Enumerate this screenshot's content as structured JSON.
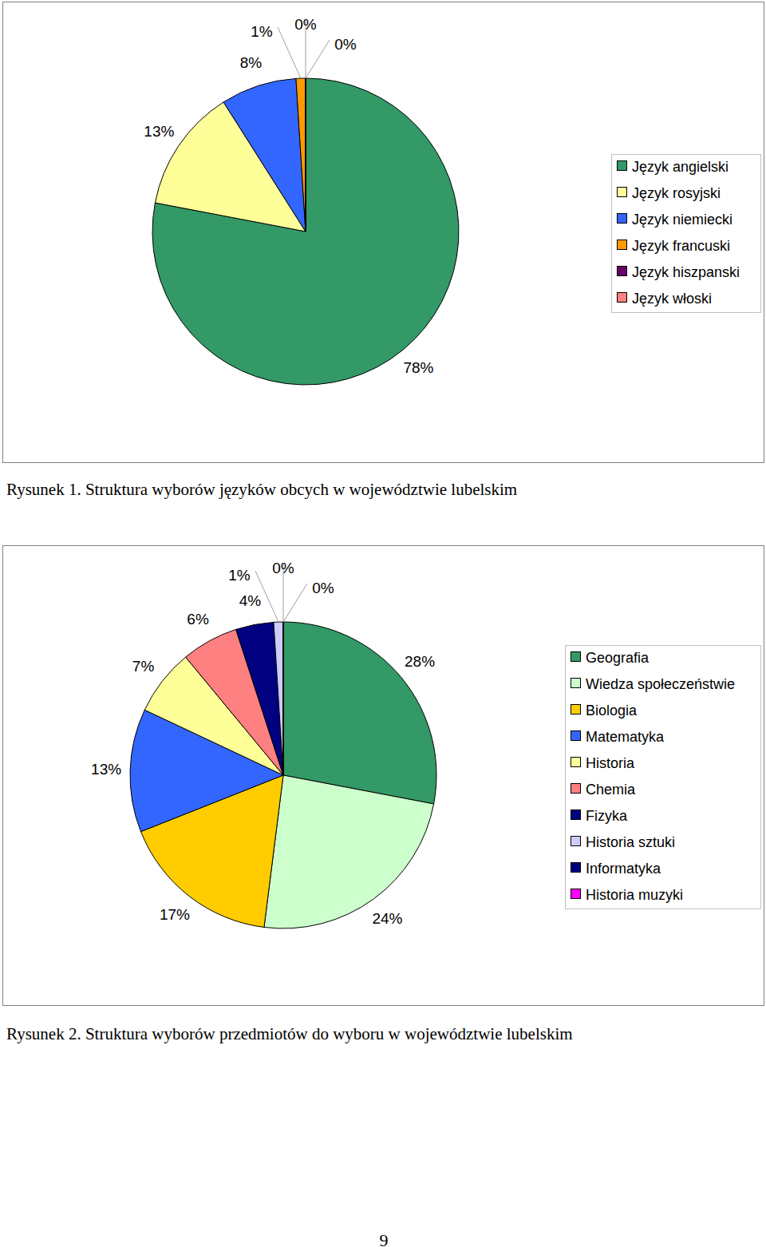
{
  "chart_data": [
    {
      "type": "pie",
      "title": "Rysunek 1. Struktura wyborów języków obcych w województwie lubelskim",
      "categories": [
        "Język angielski",
        "Język rosyjski",
        "Język niemiecki",
        "Język francuski",
        "Język hiszpanski",
        "Język włoski"
      ],
      "values": [
        78,
        13,
        8,
        1,
        0,
        0
      ],
      "value_labels": [
        "78%",
        "13%",
        "8%",
        "1%",
        "0%",
        "0%"
      ],
      "colors": [
        "#339966",
        "#ffff99",
        "#3366ff",
        "#ff9900",
        "#660066",
        "#ff8080"
      ],
      "data_labels": true,
      "legend": "right"
    },
    {
      "type": "pie",
      "title": "Rysunek 2. Struktura wyborów przedmiotów do wyboru w województwie lubelskim",
      "categories": [
        "Geografia",
        "Wiedza społeczeństwie",
        "Biologia",
        "Matematyka",
        "Historia",
        "Chemia",
        "Fizyka",
        "Historia sztuki",
        "Informatyka",
        "Historia muzyki"
      ],
      "values": [
        28,
        24,
        17,
        13,
        7,
        6,
        4,
        1,
        0,
        0
      ],
      "value_labels": [
        "28%",
        "24%",
        "17%",
        "13%",
        "7%",
        "6%",
        "4%",
        "1%",
        "0%",
        "0%"
      ],
      "colors": [
        "#339966",
        "#ccffcc",
        "#ffcc00",
        "#3366ff",
        "#ffff99",
        "#ff8080",
        "#000080",
        "#ccccff",
        "#000080",
        "#ff00ff"
      ],
      "data_labels": true,
      "legend": "right"
    }
  ],
  "page": {
    "number": "9"
  }
}
